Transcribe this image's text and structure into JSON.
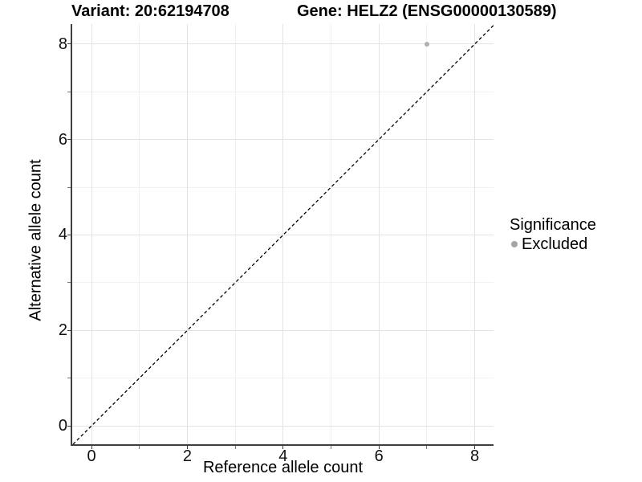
{
  "header": {
    "variant_title": "Variant: 20:62194708",
    "gene_title": "Gene: HELZ2 (ENSG00000130589)"
  },
  "axes": {
    "x": {
      "label": "Reference allele count"
    },
    "y": {
      "label": "Alternative allele count"
    }
  },
  "legend": {
    "title": "Significance",
    "items": [
      {
        "label": "Excluded",
        "color": "#a5a5a5"
      }
    ]
  },
  "chart_data": {
    "type": "scatter",
    "title": "Variant: 20:62194708 / Gene: HELZ2 (ENSG00000130589)",
    "xlabel": "Reference allele count",
    "ylabel": "Alternative allele count",
    "xlim": [
      -0.4,
      8.4
    ],
    "ylim": [
      -0.4,
      8.4
    ],
    "x_major_ticks": [
      0,
      2,
      4,
      6,
      8
    ],
    "x_minor_ticks": [
      1,
      3,
      5,
      7
    ],
    "y_major_ticks": [
      0,
      2,
      4,
      6,
      8
    ],
    "y_minor_ticks": [
      1,
      3,
      5,
      7
    ],
    "grid": "major and minor gridlines, white background",
    "legend_position": "right",
    "series": [
      {
        "name": "Excluded",
        "color": "#b0b0b0",
        "points": [
          {
            "x": 7,
            "y": 8
          }
        ]
      }
    ],
    "reference_line": {
      "equation": "y = x",
      "style": "dashed",
      "color": "#000000"
    }
  },
  "colors": {
    "background": "#ffffff",
    "axis_line": "#3f3f3f",
    "grid_major": "#e3e3e3",
    "grid_minor": "#f1f1f1",
    "point": "#b0b0b0",
    "legend_key": "#a5a5a5",
    "text": "#000000"
  }
}
